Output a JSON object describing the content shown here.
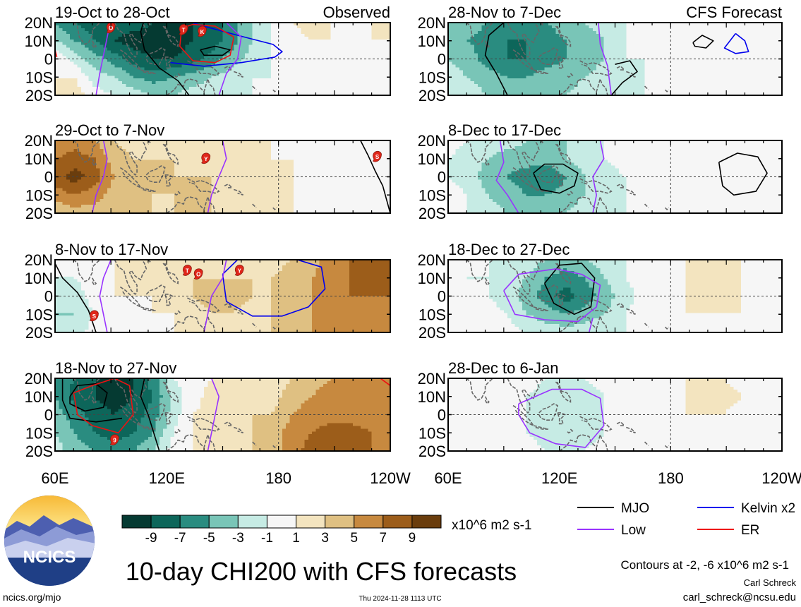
{
  "panels": [
    {
      "period": "19-Oct to 28-Oct",
      "corner": "Observed",
      "grid": [
        [
          -5,
          -7,
          -8,
          -8,
          -8,
          -9,
          -9,
          -9,
          -8,
          -6,
          -3,
          -1,
          1,
          2,
          1,
          0,
          1,
          2
        ],
        [
          -3,
          -5,
          -7,
          -9,
          -10,
          -10,
          -10,
          -9,
          -8,
          -6,
          -3,
          -1,
          0,
          1,
          1,
          0,
          1,
          1
        ],
        [
          1,
          -2,
          -4,
          -6,
          -8,
          -9,
          -9,
          -8,
          -6,
          -4,
          -2,
          -1,
          0,
          1,
          1,
          1,
          1,
          0
        ],
        [
          1,
          1,
          -2,
          -3,
          -5,
          -6,
          -5,
          -4,
          -3,
          -2,
          -1,
          -1,
          0,
          1,
          1,
          1,
          1,
          0
        ],
        [
          2,
          2,
          0,
          -1,
          -2,
          -3,
          -3,
          -2,
          -2,
          -2,
          -1,
          0,
          0,
          0,
          1,
          1,
          0,
          0
        ]
      ],
      "storms": [
        "O",
        "T",
        "K"
      ]
    },
    {
      "period": "28-Nov to 7-Dec",
      "corner": "CFS Forecast",
      "grid": [
        [
          -3,
          -4,
          -5,
          -6,
          -6,
          -5,
          -4,
          -3,
          -2,
          -1,
          0,
          0,
          1,
          0,
          0,
          1,
          1,
          0
        ],
        [
          -4,
          -5,
          -6,
          -7,
          -7,
          -6,
          -5,
          -4,
          -3,
          -1,
          0,
          0,
          0,
          0,
          0,
          0,
          0,
          0
        ],
        [
          -3,
          -4,
          -6,
          -7,
          -7,
          -6,
          -5,
          -4,
          -3,
          -1,
          -1,
          0,
          0,
          0,
          0,
          0,
          0,
          0
        ],
        [
          -2,
          -3,
          -4,
          -5,
          -5,
          -4,
          -4,
          -3,
          -2,
          -1,
          -1,
          0,
          0,
          0,
          0,
          0,
          0,
          0
        ],
        [
          -2,
          -2,
          -3,
          -3,
          -3,
          -3,
          -3,
          -2,
          -2,
          -1,
          -1,
          0,
          0,
          0,
          0,
          0,
          0,
          0
        ]
      ],
      "storms": []
    },
    {
      "period": "29-Oct to 7-Nov",
      "corner": "",
      "grid": [
        [
          5,
          6,
          5,
          3,
          2,
          2,
          2,
          2,
          2,
          2,
          1,
          1,
          1,
          1,
          0,
          0,
          -1,
          -1
        ],
        [
          7,
          8,
          7,
          4,
          3,
          3,
          3,
          3,
          2,
          2,
          2,
          1,
          1,
          1,
          1,
          0,
          0,
          -1
        ],
        [
          8,
          10,
          8,
          5,
          4,
          4,
          3,
          3,
          3,
          2,
          2,
          2,
          1,
          1,
          1,
          1,
          0,
          -1
        ],
        [
          6,
          7,
          6,
          4,
          4,
          3,
          3,
          4,
          3,
          3,
          2,
          2,
          1,
          1,
          1,
          0,
          0,
          0
        ],
        [
          3,
          4,
          4,
          3,
          3,
          3,
          3,
          3,
          3,
          2,
          2,
          1,
          1,
          1,
          0,
          0,
          0,
          0
        ]
      ],
      "storms": [
        "Y",
        "S"
      ]
    },
    {
      "period": "8-Dec to 17-Dec",
      "corner": "",
      "grid": [
        [
          0,
          -1,
          -2,
          -2,
          -3,
          -3,
          -3,
          -2,
          -1,
          0,
          0,
          0,
          1,
          1,
          1,
          0,
          0,
          0
        ],
        [
          -1,
          -2,
          -3,
          -4,
          -4,
          -4,
          -3,
          -2,
          -1,
          0,
          0,
          0,
          1,
          1,
          0,
          0,
          0,
          0
        ],
        [
          -1,
          -2,
          -4,
          -5,
          -6,
          -7,
          -5,
          -3,
          -2,
          -1,
          0,
          0,
          0,
          0,
          0,
          0,
          0,
          0
        ],
        [
          0,
          -1,
          -3,
          -4,
          -5,
          -5,
          -4,
          -3,
          -2,
          -1,
          0,
          0,
          0,
          0,
          0,
          0,
          0,
          0
        ],
        [
          0,
          -1,
          -2,
          -3,
          -3,
          -3,
          -3,
          -2,
          -1,
          -1,
          0,
          0,
          0,
          0,
          0,
          0,
          0,
          0
        ]
      ],
      "storms": []
    },
    {
      "period": "8-Nov to 17-Nov",
      "corner": "",
      "grid": [
        [
          0,
          -1,
          0,
          1,
          1,
          2,
          1,
          1,
          2,
          3,
          3,
          2,
          3,
          4,
          6,
          7,
          7,
          7
        ],
        [
          -1,
          -1,
          0,
          1,
          2,
          2,
          2,
          3,
          3,
          3,
          3,
          3,
          4,
          5,
          6,
          7,
          8,
          7
        ],
        [
          -2,
          -2,
          0,
          1,
          1,
          1,
          2,
          3,
          4,
          4,
          3,
          3,
          4,
          5,
          6,
          7,
          7,
          7
        ],
        [
          -3,
          -3,
          -1,
          0,
          0,
          1,
          1,
          2,
          3,
          3,
          2,
          3,
          4,
          5,
          6,
          7,
          7,
          7
        ],
        [
          -2,
          -2,
          0,
          1,
          1,
          1,
          1,
          2,
          2,
          2,
          2,
          3,
          4,
          5,
          6,
          7,
          7,
          6
        ]
      ],
      "storms": [
        "S",
        "T",
        "O",
        "Y"
      ]
    },
    {
      "period": "18-Dec to 27-Dec",
      "corner": "",
      "grid": [
        [
          0,
          0,
          -1,
          -1,
          -2,
          -3,
          -4,
          -3,
          -2,
          -1,
          0,
          0,
          1,
          1,
          1,
          1,
          0,
          0
        ],
        [
          0,
          -1,
          -1,
          -2,
          -3,
          -5,
          -6,
          -5,
          -3,
          -1,
          0,
          1,
          1,
          2,
          2,
          1,
          0,
          0
        ],
        [
          1,
          0,
          -1,
          -2,
          -4,
          -6,
          -8,
          -6,
          -4,
          -2,
          0,
          1,
          1,
          2,
          2,
          1,
          0,
          0
        ],
        [
          1,
          0,
          0,
          -1,
          -3,
          -4,
          -5,
          -4,
          -3,
          -1,
          0,
          0,
          1,
          1,
          1,
          1,
          0,
          0
        ],
        [
          1,
          1,
          0,
          0,
          -1,
          -2,
          -2,
          -2,
          -1,
          -1,
          0,
          0,
          0,
          1,
          1,
          0,
          0,
          0
        ]
      ],
      "storms": []
    },
    {
      "period": "18-Nov to 27-Nov",
      "corner": "",
      "grid": [
        [
          -5,
          -7,
          -9,
          -9,
          -9,
          -6,
          -1,
          0,
          1,
          2,
          2,
          2,
          3,
          4,
          5,
          5,
          6,
          6
        ],
        [
          -5,
          -8,
          -9,
          -10,
          -9,
          -7,
          -2,
          0,
          2,
          2,
          2,
          2,
          4,
          5,
          6,
          6,
          6,
          7
        ],
        [
          -4,
          -6,
          -8,
          -9,
          -8,
          -6,
          -2,
          1,
          2,
          2,
          3,
          3,
          5,
          6,
          6,
          6,
          6,
          6
        ],
        [
          -3,
          -5,
          -7,
          -8,
          -7,
          -5,
          -1,
          1,
          2,
          2,
          3,
          4,
          6,
          7,
          8,
          8,
          7,
          6
        ],
        [
          -2,
          -4,
          -5,
          -6,
          -5,
          -3,
          0,
          1,
          2,
          2,
          3,
          4,
          6,
          8,
          9,
          8,
          7,
          6
        ]
      ],
      "storms": [
        "9"
      ]
    },
    {
      "period": "28-Dec to 6-Jan",
      "corner": "",
      "grid": [
        [
          1,
          1,
          1,
          0,
          0,
          -1,
          -1,
          -1,
          0,
          0,
          1,
          1,
          1,
          2,
          1,
          0,
          0,
          0
        ],
        [
          1,
          1,
          0,
          0,
          -1,
          -2,
          -2,
          -2,
          -1,
          0,
          0,
          1,
          1,
          2,
          2,
          1,
          0,
          0
        ],
        [
          1,
          1,
          0,
          -1,
          -1,
          -2,
          -3,
          -2,
          -1,
          0,
          0,
          1,
          1,
          1,
          1,
          0,
          0,
          0
        ],
        [
          1,
          1,
          0,
          0,
          -1,
          -2,
          -2,
          -2,
          -1,
          0,
          0,
          0,
          1,
          1,
          1,
          0,
          0,
          0
        ],
        [
          1,
          1,
          1,
          0,
          0,
          -1,
          -1,
          -1,
          0,
          0,
          0,
          0,
          0,
          1,
          0,
          0,
          0,
          0
        ]
      ],
      "storms": []
    }
  ],
  "lat_labels": [
    "20N",
    "10N",
    "0",
    "10S",
    "20S"
  ],
  "lon_labels_left": [
    "60E",
    "120E",
    "180",
    "120W"
  ],
  "lon_labels_right": [
    "60E",
    "120E",
    "180",
    "120W"
  ],
  "colorbar": {
    "colors": [
      "#053a32",
      "#0d665a",
      "#2a8c80",
      "#79c5b7",
      "#c6ebe4",
      "#f6f6f6",
      "#f3e4bf",
      "#dfc082",
      "#c7893f",
      "#9c5d1a",
      "#6a3d0d"
    ],
    "tick_labels": [
      "-9",
      "-7",
      "-5",
      "-3",
      "-1",
      "1",
      "3",
      "5",
      "7",
      "9"
    ],
    "units": "x10^6 m2 s-1"
  },
  "legend": [
    {
      "label": "MJO",
      "color": "#000000"
    },
    {
      "label": "Kelvin x2",
      "color": "#0000ee"
    },
    {
      "label": "Low",
      "color": "#9933ff"
    },
    {
      "label": "ER",
      "color": "#ee1111"
    }
  ],
  "title": "10-day CHI200 with CFS forecasts",
  "contours_note": "Contours at -2, -6 x10^6 m2 s-1",
  "author": "Carl Schreck",
  "email": "carl_schreck@ncsu.edu",
  "website": "ncics.org/mjo",
  "timestamp": "Thu 2024-11-28 1113 UTC",
  "logo_text": "NCICS",
  "colors": {
    "land_outline": "#666666",
    "frame": "#000000",
    "storm_marker": "#e0261a"
  }
}
